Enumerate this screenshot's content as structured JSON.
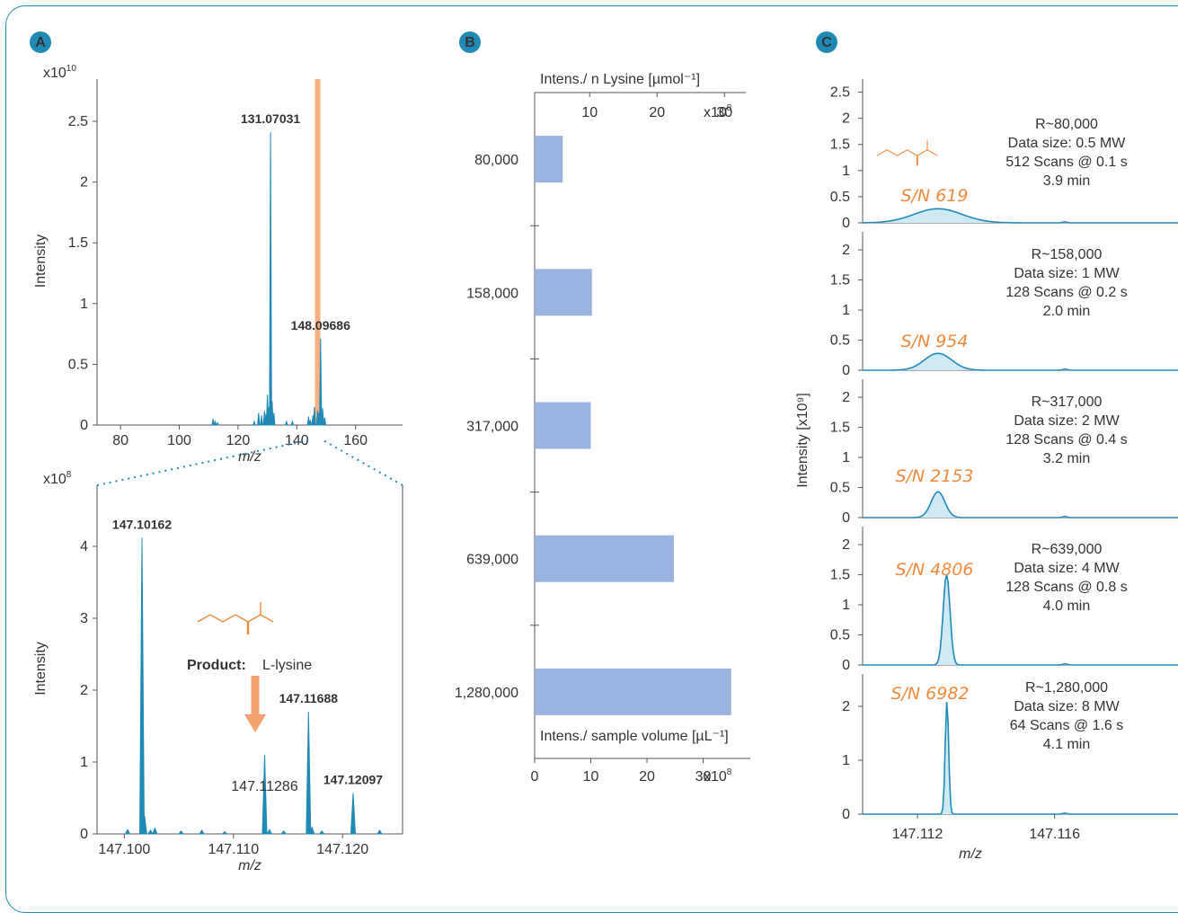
{
  "colors": {
    "line": "#1f8ab5",
    "highlight": "#f4a26d",
    "accent": "#ef8a3c",
    "bar": "#9ab3de",
    "axis": "#555555",
    "frame": "#1f8ab5"
  },
  "panel_labels": {
    "a": "A",
    "b": "B",
    "c": "C"
  },
  "chart_data": [
    {
      "id": "A_top",
      "type": "line",
      "xlabel": "m/z",
      "ylabel": "Intensity",
      "y_multiplier": "x10",
      "y_multiplier_exp": "10",
      "xlim": [
        72,
        176
      ],
      "ylim": [
        0,
        2.7
      ],
      "xticks": [
        80,
        100,
        120,
        140,
        160
      ],
      "yticks": [
        0,
        0.5,
        1.0,
        1.5,
        2.0,
        2.5
      ],
      "highlight_x": 147.1,
      "peaks": [
        [
          111.5,
          0.05
        ],
        [
          112.2,
          0.03
        ],
        [
          113,
          0.02
        ],
        [
          125.5,
          0.03
        ],
        [
          127,
          0.1
        ],
        [
          128,
          0.08
        ],
        [
          129,
          0.12
        ],
        [
          129.5,
          0.09
        ],
        [
          130,
          0.25
        ],
        [
          130.5,
          0.15
        ],
        [
          131.07,
          2.41
        ],
        [
          131.6,
          0.2
        ],
        [
          132.2,
          0.1
        ],
        [
          136.5,
          0.03
        ],
        [
          138.5,
          0.03
        ],
        [
          144,
          0.07
        ],
        [
          144.6,
          0.04
        ],
        [
          145.5,
          0.08
        ],
        [
          146,
          0.15
        ],
        [
          147.1,
          0.12
        ],
        [
          147.5,
          0.1
        ],
        [
          148.1,
          0.71
        ],
        [
          148.8,
          0.14
        ],
        [
          149.5,
          0.06
        ]
      ],
      "annotations": [
        {
          "x": 131.07031,
          "y": 2.41,
          "text": "131.07031"
        },
        {
          "x": 148.09686,
          "y": 0.71,
          "text": "148.09686"
        }
      ]
    },
    {
      "id": "A_zoom",
      "type": "line",
      "xlabel": "m/z",
      "ylabel": "Intensity",
      "y_multiplier": "x10",
      "y_multiplier_exp": "8",
      "xlim": [
        147.0975,
        147.1255
      ],
      "ylim": [
        0,
        4.6
      ],
      "xticks": [
        147.1,
        147.11,
        147.12
      ],
      "xtick_labels": [
        "147.100",
        "147.110",
        "147.120"
      ],
      "yticks": [
        0,
        1.0,
        2.0,
        3.0,
        4.0
      ],
      "peaks": [
        [
          147.10162,
          4.12
        ],
        [
          147.10185,
          0.25
        ],
        [
          147.1003,
          0.06
        ],
        [
          147.1018,
          0.1
        ],
        [
          147.1024,
          0.05
        ],
        [
          147.1028,
          0.08
        ],
        [
          147.1052,
          0.04
        ],
        [
          147.1071,
          0.05
        ],
        [
          147.1092,
          0.03
        ],
        [
          147.11286,
          1.1
        ],
        [
          147.1133,
          0.06
        ],
        [
          147.1146,
          0.04
        ],
        [
          147.11688,
          1.7
        ],
        [
          147.1172,
          0.09
        ],
        [
          147.1181,
          0.04
        ],
        [
          147.12097,
          0.57
        ],
        [
          147.1234,
          0.05
        ]
      ],
      "annotations": [
        {
          "x": 147.10162,
          "y": 4.12,
          "text": "147.10162"
        },
        {
          "x": 147.11688,
          "y": 1.7,
          "text": "147.11688"
        },
        {
          "x": 147.12097,
          "y": 0.57,
          "text": "147.12097"
        },
        {
          "x": 147.11286,
          "y": 1.1,
          "text": "147.11286",
          "accent": true
        }
      ],
      "product_label": "Product:",
      "product_name": "L-lysine"
    },
    {
      "id": "B",
      "type": "bar",
      "orientation": "horizontal",
      "categories": [
        "80,000",
        "158,000",
        "317,000",
        "639,000",
        "1,280,000"
      ],
      "values": [
        5,
        10.2,
        10,
        24.8,
        35
      ],
      "xlim": [
        0,
        40
      ],
      "xticks": [
        0,
        10,
        20,
        30
      ],
      "multiplier": "x10",
      "multiplier_exp": "8",
      "bottom_axis_label": "Intens./ sample volume [µL⁻¹]",
      "top_axis_label": "Intens./ n Lysine [µmol⁻¹]",
      "top_ticks": [
        10,
        20,
        30
      ]
    },
    {
      "id": "C",
      "type": "line",
      "xlabel": "m/z",
      "ylabel": "Intensity [x10⁹]",
      "xlim": [
        147.1104,
        147.1196
      ],
      "xticks": [
        147.112,
        147.116
      ],
      "xtick_labels": [
        "147.112",
        "147.116"
      ],
      "panels": [
        {
          "yticks": [
            0,
            0.5,
            1.0,
            1.5,
            2.0,
            2.5
          ],
          "ymax": 2.75,
          "sn": "S/N 619",
          "peak_x": 147.1126,
          "peak_y": 0.27,
          "width": 0.0014,
          "resolution": "R~80,000",
          "data_size": "Data size: 0.5 MW",
          "scans": "512 Scans @ 0.1 s",
          "time": "3.9 min",
          "molecule": true
        },
        {
          "yticks": [
            0,
            0.5,
            1.0,
            1.5,
            2.0
          ],
          "ymax": 2.3,
          "sn": "S/N 954",
          "peak_x": 147.1126,
          "peak_y": 0.28,
          "width": 0.0008,
          "resolution": "R~158,000",
          "data_size": "Data size: 1 MW",
          "scans": "128 Scans @ 0.2 s",
          "time": "2.0 min"
        },
        {
          "yticks": [
            0,
            0.5,
            1.0,
            1.5,
            2.0
          ],
          "ymax": 2.3,
          "sn": "S/N 2153",
          "peak_x": 147.1126,
          "peak_y": 0.43,
          "width": 0.0004,
          "resolution": "R~317,000",
          "data_size": "Data size: 2 MW",
          "scans": "128 Scans @ 0.4 s",
          "time": "3.2 min"
        },
        {
          "yticks": [
            0,
            0.5,
            1.0,
            1.5,
            2.0
          ],
          "ymax": 2.3,
          "sn": "S/N 4806",
          "peak_x": 147.11285,
          "peak_y": 1.5,
          "width": 0.0002,
          "resolution": "R~639,000",
          "data_size": "Data size: 4 MW",
          "scans": "128 Scans @ 0.8 s",
          "time": "4.0 min"
        },
        {
          "yticks": [
            0,
            1.0,
            2.0
          ],
          "ymax": 2.6,
          "sn": "S/N 6982",
          "peak_x": 147.11286,
          "peak_y": 2.1,
          "width": 0.0001,
          "resolution": "R~1,280,000",
          "data_size": "Data size: 8 MW",
          "scans": "64 Scans @ 1.6 s",
          "time": "4.1 min"
        }
      ]
    }
  ]
}
